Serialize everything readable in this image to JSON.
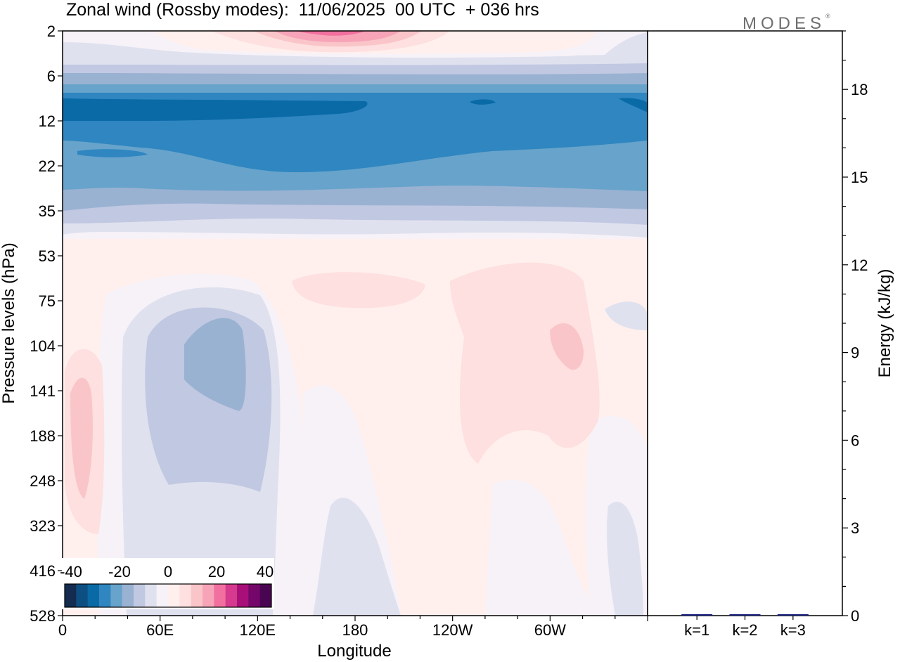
{
  "header": {
    "title": "Zonal wind (Rossby modes):  11/06/2025  00 UTC  + 036 hrs",
    "logo": "MODES",
    "logo_mark": "®"
  },
  "chart_data": [
    {
      "type": "heatmap",
      "title": "Zonal wind (Rossby modes):  11/06/2025  00 UTC  + 036 hrs",
      "xlabel": "Longitude",
      "ylabel": "Pressure levels (hPa)",
      "x_ticks": [
        "0",
        "60E",
        "120E",
        "180",
        "120W",
        "60W"
      ],
      "y_ticks": [
        "2",
        "6",
        "12",
        "22",
        "35",
        "53",
        "75",
        "104",
        "141",
        "188",
        "248",
        "323",
        "416",
        "528"
      ],
      "colorbar": {
        "tick_labels": [
          "-40",
          "-20",
          "0",
          "20",
          "40"
        ],
        "range": [
          -40,
          40
        ],
        "step": 5,
        "colors": [
          "#142c4f",
          "#0e4f82",
          "#0a6aa6",
          "#2f86c0",
          "#67a3cb",
          "#9ab2d2",
          "#c1c8e1",
          "#e0e1ef",
          "#f7f2f8",
          "#fff0ee",
          "#fde0df",
          "#fac5c9",
          "#f7a4b8",
          "#f2709f",
          "#d63a8e",
          "#a90f79",
          "#75076a",
          "#4a0552"
        ]
      },
      "field_description_by_level": [
        {
          "level": "2",
          "value_range": [
            5,
            25
          ]
        },
        {
          "level": "6",
          "value_range": [
            -10,
            -5
          ]
        },
        {
          "level": "12",
          "value_range": [
            -30,
            -20
          ]
        },
        {
          "level": "22",
          "value_range": [
            -20,
            -15
          ]
        },
        {
          "level": "35",
          "value_range": [
            -10,
            -5
          ]
        },
        {
          "level": "53",
          "value_range": [
            0,
            5
          ]
        },
        {
          "level": "141",
          "value_range": [
            -15,
            10
          ]
        },
        {
          "level": "528",
          "value_range": [
            -5,
            5
          ]
        }
      ]
    },
    {
      "type": "bar",
      "categories": [
        "k=1",
        "k=2",
        "k=3"
      ],
      "values": [
        0.05,
        0.02,
        0.01
      ],
      "ylabel": "Energy (kJ/kg)",
      "ylim": [
        0,
        20
      ],
      "y_ticks": [
        0,
        3,
        6,
        9,
        12,
        15,
        18
      ],
      "bar_color": "#1a237e"
    }
  ]
}
